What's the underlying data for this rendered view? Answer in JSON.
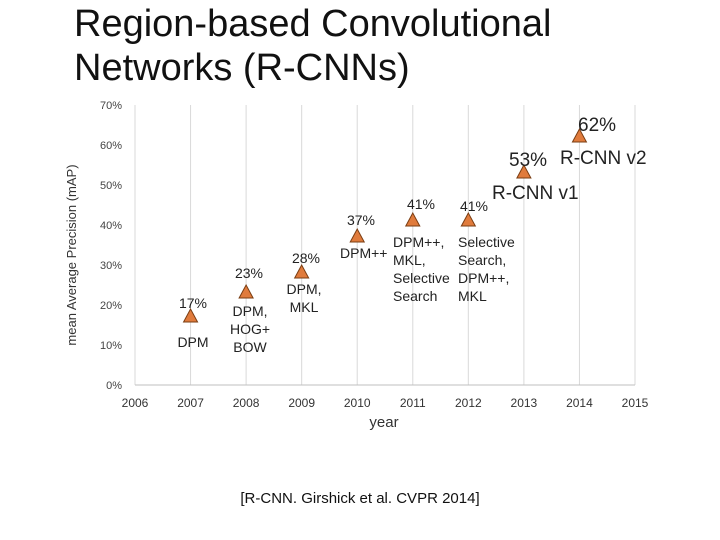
{
  "slide": {
    "title_line1": "Region-based Convolutional",
    "title_line2": "Networks (R-CNNs)",
    "caption": "[R-CNN. Girshick et al. CVPR 2014]"
  },
  "chart_data": {
    "type": "scatter",
    "xlabel": "year",
    "ylabel": "mean Average Precision (mAP)",
    "xlim": [
      2006,
      2015
    ],
    "ylim": [
      0,
      70
    ],
    "x_ticks": [
      "2006",
      "2007",
      "2008",
      "2009",
      "2010",
      "2011",
      "2012",
      "2013",
      "2014",
      "2015"
    ],
    "y_ticks": [
      "0%",
      "10%",
      "20%",
      "30%",
      "40%",
      "50%",
      "60%",
      "70%"
    ],
    "grid": "vertical",
    "marker": "triangle",
    "colors": {
      "marker_fill": "#e07b3c",
      "marker_stroke": "#7a3d12",
      "grid": "#d9d9d9"
    },
    "points": [
      {
        "x": 2007,
        "y": 17,
        "value_label": "17%",
        "method": "DPM"
      },
      {
        "x": 2008,
        "y": 23,
        "value_label": "23%",
        "method": "DPM, HOG+ BOW"
      },
      {
        "x": 2009,
        "y": 28,
        "value_label": "28%",
        "method": "DPM, MKL"
      },
      {
        "x": 2010,
        "y": 37,
        "value_label": "37%",
        "method": "DPM++"
      },
      {
        "x": 2011,
        "y": 41,
        "value_label": "41%",
        "method": "DPM++, MKL, Selective Search"
      },
      {
        "x": 2012,
        "y": 41,
        "value_label": "41%",
        "method": "Selective Search, DPM++, MKL"
      },
      {
        "x": 2013,
        "y": 53,
        "value_label": "53%",
        "method": "R-CNN v1"
      },
      {
        "x": 2014,
        "y": 62,
        "value_label": "62%",
        "method": "R-CNN v2"
      }
    ]
  }
}
